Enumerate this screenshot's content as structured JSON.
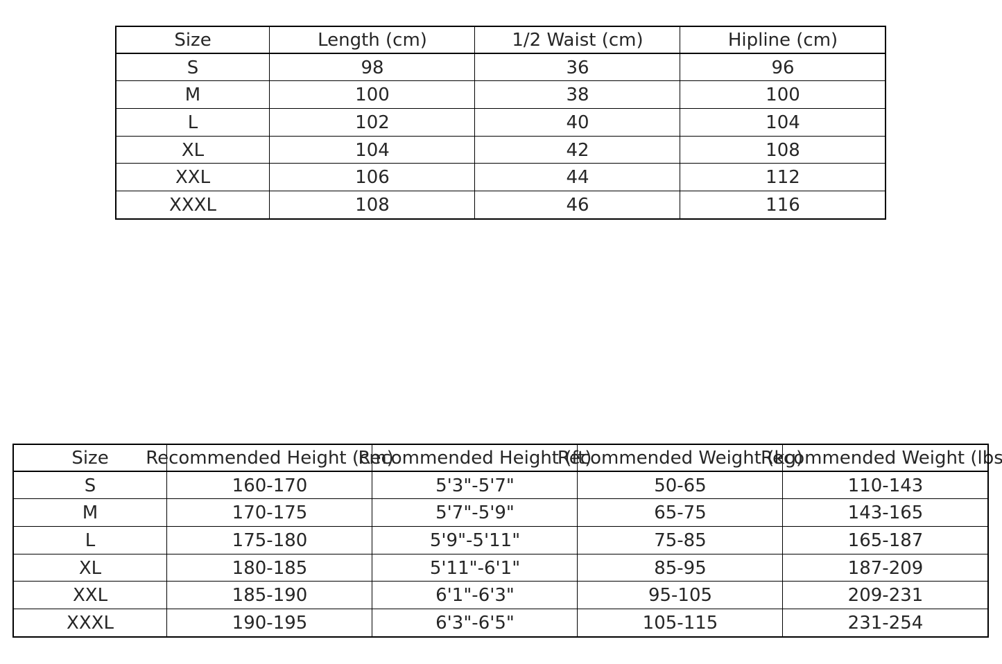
{
  "chart_data": [
    {
      "type": "table",
      "columns": [
        "Size",
        "Length (cm)",
        "1/2 Waist (cm)",
        "Hipline (cm)"
      ],
      "rows": [
        [
          "S",
          "98",
          "36",
          "96"
        ],
        [
          "M",
          "100",
          "38",
          "100"
        ],
        [
          "L",
          "102",
          "40",
          "104"
        ],
        [
          "XL",
          "104",
          "42",
          "108"
        ],
        [
          "XXL",
          "106",
          "44",
          "112"
        ],
        [
          "XXXL",
          "108",
          "46",
          "116"
        ]
      ]
    },
    {
      "type": "table",
      "columns": [
        "Size",
        "Recommended Height (cm)",
        "Recommended Height (ft)",
        "Recommended Weight (kg)",
        "Recommended Weight (lbs)"
      ],
      "rows": [
        [
          "S",
          "160-170",
          "5'3\"-5'7\"",
          "50-65",
          "110-143"
        ],
        [
          "M",
          "170-175",
          "5'7\"-5'9\"",
          "65-75",
          "143-165"
        ],
        [
          "L",
          "175-180",
          "5'9\"-5'11\"",
          "75-85",
          "165-187"
        ],
        [
          "XL",
          "180-185",
          "5'11\"-6'1\"",
          "85-95",
          "187-209"
        ],
        [
          "XXL",
          "185-190",
          "6'1\"-6'3\"",
          "95-105",
          "209-231"
        ],
        [
          "XXXL",
          "190-195",
          "6'3\"-6'5\"",
          "105-115",
          "231-254"
        ]
      ]
    }
  ]
}
